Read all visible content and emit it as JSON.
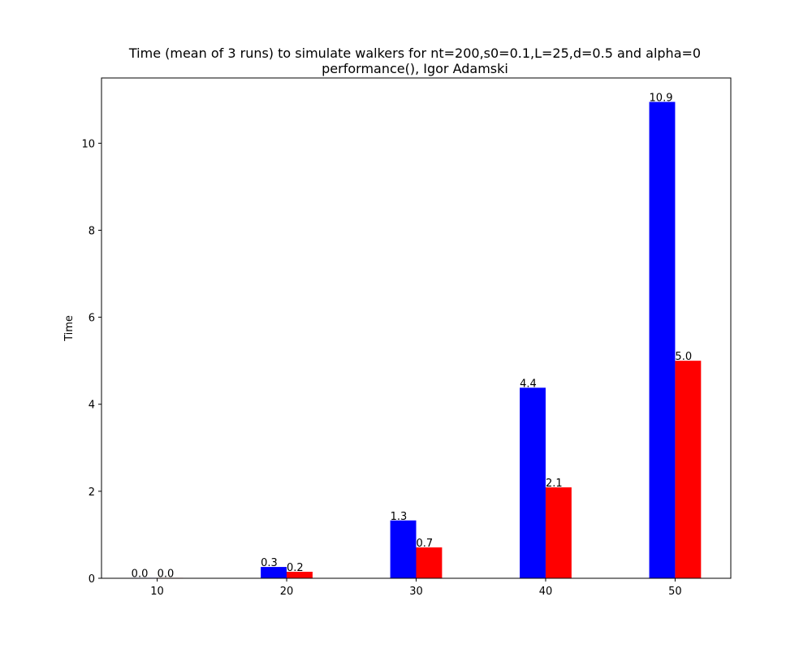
{
  "chart_data": {
    "type": "bar",
    "title": "Time (mean of 3 runs) to simulate walkers for nt=200,s0=0.1,L=25,d=0.5 and alpha=0",
    "subtitle": "performance(), Igor Adamski",
    "xlabel": "",
    "ylabel": "Time",
    "x_ticks": [
      "10",
      "20",
      "30",
      "40",
      "50"
    ],
    "x_values": [
      10,
      20,
      30,
      40,
      50
    ],
    "xlim": [
      5.7,
      54.3
    ],
    "ylim": [
      0,
      11.5
    ],
    "y_ticks": [
      0,
      2,
      4,
      6,
      8,
      10
    ],
    "grid": false,
    "legend": "none",
    "series": [
      {
        "color": "#0000ff",
        "values": [
          0.01,
          0.26,
          1.33,
          4.38,
          10.95
        ],
        "labels": [
          "0.0",
          "0.3",
          "1.3",
          "4.4",
          "10.9"
        ]
      },
      {
        "color": "#ff0000",
        "values": [
          0.01,
          0.15,
          0.71,
          2.09,
          5.0
        ],
        "labels": [
          "0.0",
          "0.2",
          "0.7",
          "2.1",
          "5.0"
        ]
      }
    ]
  }
}
